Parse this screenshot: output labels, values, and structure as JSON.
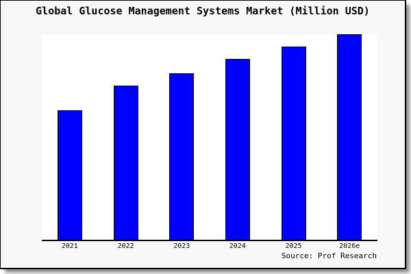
{
  "card": {
    "background": "#f8f8f8",
    "plot_background": "#ffffff",
    "border_color": "#000000",
    "text_color": "#000000"
  },
  "chart_data": {
    "type": "bar",
    "title": "Global Glucose Management Systems Market (Million USD)",
    "categories": [
      "2021",
      "2022",
      "2023",
      "2024",
      "2025",
      "2026e"
    ],
    "values": [
      63,
      75,
      81,
      88,
      94,
      100
    ],
    "y_axis": "none shown; values are relative estimates with tallest bar (2026e) = 100",
    "ylim": [
      0,
      100
    ],
    "xlabel": "",
    "ylabel": "",
    "grid": false,
    "legend": null,
    "bar_color": "#0000ff",
    "bar_edge_color": "#000000",
    "source_note": "Source: Prof Research"
  }
}
